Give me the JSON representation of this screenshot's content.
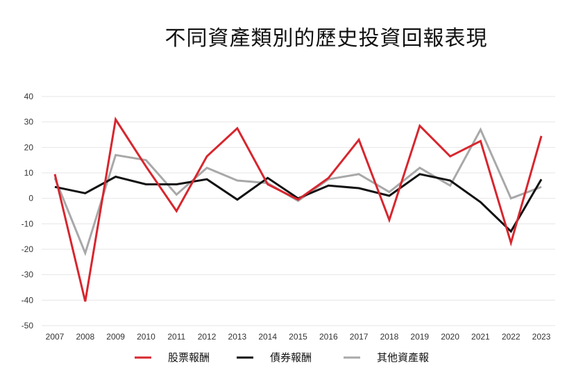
{
  "chart_data": {
    "type": "line",
    "title": "不同資產類別的歷史投資回報表現",
    "xlabel": "",
    "ylabel": "",
    "categories": [
      "2007",
      "2008",
      "2009",
      "2010",
      "2011",
      "2012",
      "2013",
      "2014",
      "2015",
      "2016",
      "2017",
      "2018",
      "2019",
      "2020",
      "2021",
      "2022",
      "2023"
    ],
    "yticks": [
      "40",
      "30",
      "20",
      "10",
      "0",
      "-10",
      "-20",
      "-30",
      "-40",
      "-50"
    ],
    "ylim": [
      -50,
      40
    ],
    "grid": true,
    "legend_position": "bottom",
    "series": [
      {
        "name": "股票報酬",
        "color": "#d7262e",
        "values": [
          9.5,
          -40.5,
          31,
          12.5,
          -5,
          16.5,
          27.5,
          5.5,
          -0.5,
          8,
          23,
          -8.5,
          28.5,
          16.5,
          22.5,
          -17.5,
          24.5
        ]
      },
      {
        "name": "債券報酬",
        "color": "#111111",
        "values": [
          4.5,
          2,
          8.5,
          5.5,
          5.5,
          7.5,
          -0.5,
          8,
          0,
          5,
          4,
          1,
          9.5,
          7,
          -1.5,
          -13,
          7.5
        ]
      },
      {
        "name": "其他資產報",
        "color": "#a8a8a8",
        "values": [
          8,
          -21.5,
          17,
          15,
          1.5,
          12,
          7,
          6,
          -1,
          7.5,
          9.5,
          2.5,
          12,
          5,
          27,
          0,
          4.5
        ]
      }
    ]
  }
}
